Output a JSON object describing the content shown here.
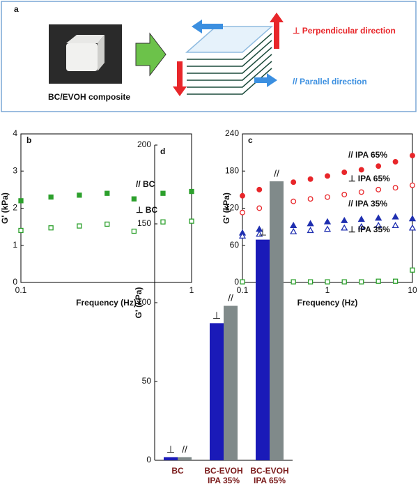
{
  "panel_a": {
    "label": "a",
    "sample": "BC/EVOH composite",
    "perpendicular": "⊥ Perpendicular direction",
    "parallel": "// Parallel direction"
  },
  "chart_data": [
    {
      "type": "scatter",
      "label": "b",
      "xlabel": "Frequency (Hz)",
      "ylabel": "G' (kPa)",
      "xscale": "log",
      "xlim": [
        0.1,
        1
      ],
      "xticks": [
        0.1,
        1
      ],
      "ylim": [
        0,
        4
      ],
      "yticks": [
        0,
        1,
        2,
        3,
        4
      ],
      "x": [
        0.1,
        0.15,
        0.22,
        0.32,
        0.46,
        0.68,
        1
      ],
      "series": [
        {
          "name": "// BC",
          "color": "#2ca02c",
          "marker": "square",
          "filled": true,
          "values": [
            2.2,
            2.3,
            2.35,
            2.4,
            2.25,
            2.4,
            2.45
          ]
        },
        {
          "name": "⊥ BC",
          "color": "#2ca02c",
          "marker": "square",
          "filled": false,
          "values": [
            1.4,
            1.47,
            1.52,
            1.57,
            1.38,
            1.63,
            1.65
          ]
        }
      ]
    },
    {
      "type": "scatter",
      "label": "c",
      "xlabel": "Frequency (Hz)",
      "ylabel": "G' (kPa)",
      "xscale": "log",
      "xlim": [
        0.1,
        10
      ],
      "xticks": [
        0.1,
        1,
        10
      ],
      "ylim": [
        0,
        240
      ],
      "yticks": [
        0,
        60,
        120,
        180,
        240
      ],
      "x": [
        0.1,
        0.158,
        0.251,
        0.398,
        0.631,
        1,
        1.58,
        2.51,
        3.98,
        6.31,
        10
      ],
      "series": [
        {
          "name": "// IPA 65%",
          "color": "#e8262a",
          "marker": "circle",
          "filled": true,
          "values": [
            140,
            150,
            157,
            162,
            167,
            172,
            178,
            182,
            188,
            195,
            205
          ]
        },
        {
          "name": "⊥ IPA 65%",
          "color": "#e8262a",
          "marker": "circle",
          "filled": false,
          "values": [
            113,
            120,
            126,
            131,
            135,
            138,
            142,
            146,
            150,
            153,
            157
          ]
        },
        {
          "name": "// IPA 35%",
          "color": "#1f2fb0",
          "marker": "triangle",
          "filled": true,
          "values": [
            80,
            86,
            90,
            92,
            95,
            98,
            100,
            102,
            104,
            106,
            103
          ]
        },
        {
          "name": "⊥ IPA 35%",
          "color": "#1f2fb0",
          "marker": "triangle",
          "filled": false,
          "values": [
            75,
            78,
            80,
            82,
            84,
            86,
            88,
            90,
            92,
            92,
            88
          ]
        },
        {
          "color": "#2ca02c",
          "marker": "square",
          "filled": false,
          "values": [
            1,
            1,
            1,
            1,
            1,
            1,
            1,
            1,
            2,
            2,
            20
          ]
        }
      ]
    },
    {
      "type": "bar",
      "label": "d",
      "ylabel": "G' (kPa)",
      "categories": [
        [
          "BC"
        ],
        [
          "BC-EVOH",
          "IPA 35%"
        ],
        [
          "BC-EVOH",
          "IPA 65%"
        ]
      ],
      "ylim": [
        0,
        200
      ],
      "yticks": [
        0,
        50,
        100,
        150,
        200
      ],
      "series": [
        {
          "name": "⊥",
          "color": "#1a1ab8",
          "values": [
            2,
            87,
            140
          ]
        },
        {
          "name": "//",
          "color": "#808a8a",
          "values": [
            2,
            98,
            177
          ]
        }
      ]
    }
  ]
}
